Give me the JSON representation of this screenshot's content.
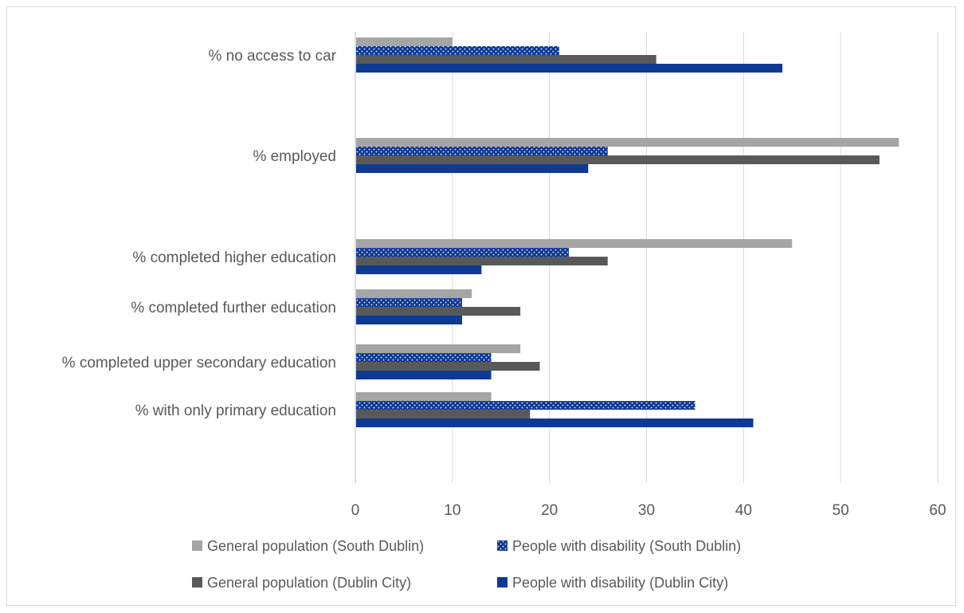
{
  "chart_data": {
    "type": "bar",
    "orientation": "horizontal",
    "categories": [
      "% no access to car",
      "% employed",
      "% completed higher education",
      "% completed further education",
      "% completed upper secondary education",
      "% with only primary education"
    ],
    "series": [
      {
        "name": "General population (South Dublin)",
        "color": "#a5a5a5",
        "pattern": "solid",
        "values": [
          10,
          56,
          45,
          12,
          17,
          14
        ]
      },
      {
        "name": "People with disability (South Dublin)",
        "color": "#0e3a94",
        "pattern": "dots",
        "values": [
          21,
          26,
          22,
          11,
          14,
          35
        ]
      },
      {
        "name": "General population (Dublin City)",
        "color": "#595959",
        "pattern": "solid",
        "values": [
          31,
          54,
          26,
          17,
          19,
          18
        ]
      },
      {
        "name": "People with disability (Dublin City)",
        "color": "#0e3a94",
        "pattern": "solid",
        "values": [
          44,
          24,
          13,
          11,
          14,
          41
        ]
      }
    ],
    "xlim": [
      0,
      60
    ],
    "xticks": [
      0,
      10,
      20,
      30,
      40,
      50,
      60
    ],
    "grid": "vertical",
    "legend_position": "bottom"
  }
}
